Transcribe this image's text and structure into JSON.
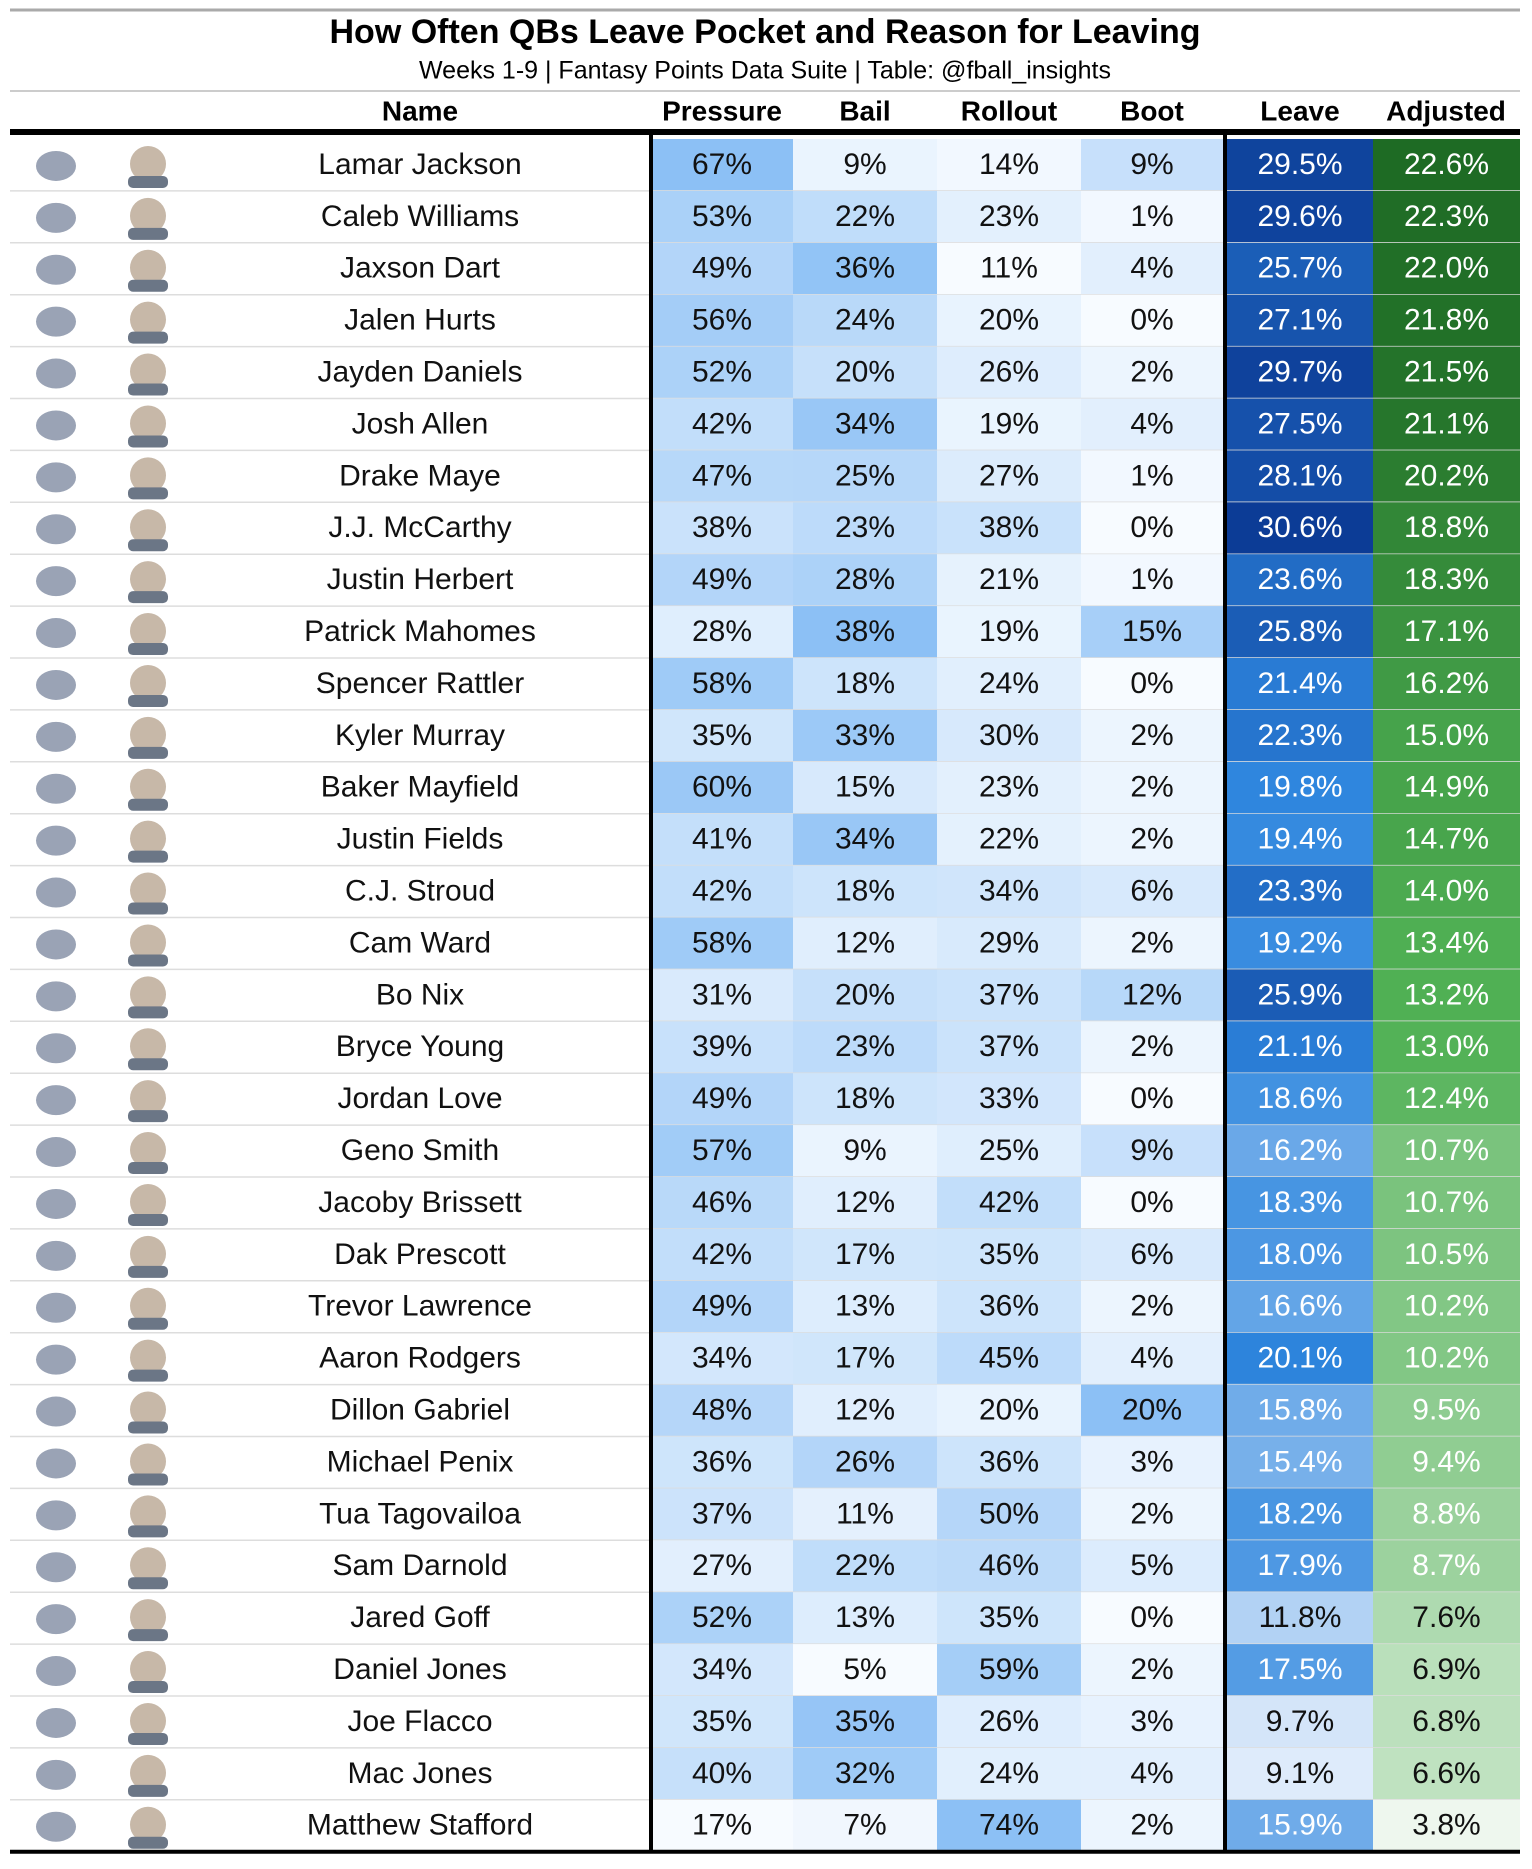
{
  "header": {
    "title": "How Often QBs Leave Pocket and Reason for Leaving",
    "subtitle": "Weeks 1-9 | Fantasy Points Data Suite | Table: @fball_insights"
  },
  "table": {
    "columns": [
      "Name",
      "Pressure",
      "Bail",
      "Rollout",
      "Boot",
      "Leave",
      "Adjusted"
    ],
    "rows": [
      [
        "Lamar Jackson",
        "67%",
        "9%",
        "14%",
        "9%",
        "29.5%",
        "22.6%"
      ],
      [
        "Caleb Williams",
        "53%",
        "22%",
        "23%",
        "1%",
        "29.6%",
        "22.3%"
      ],
      [
        "Jaxson Dart",
        "49%",
        "36%",
        "11%",
        "4%",
        "25.7%",
        "22.0%"
      ],
      [
        "Jalen Hurts",
        "56%",
        "24%",
        "20%",
        "0%",
        "27.1%",
        "21.8%"
      ],
      [
        "Jayden Daniels",
        "52%",
        "20%",
        "26%",
        "2%",
        "29.7%",
        "21.5%"
      ],
      [
        "Josh Allen",
        "42%",
        "34%",
        "19%",
        "4%",
        "27.5%",
        "21.1%"
      ],
      [
        "Drake Maye",
        "47%",
        "25%",
        "27%",
        "1%",
        "28.1%",
        "20.2%"
      ],
      [
        "J.J. McCarthy",
        "38%",
        "23%",
        "38%",
        "0%",
        "30.6%",
        "18.8%"
      ],
      [
        "Justin Herbert",
        "49%",
        "28%",
        "21%",
        "1%",
        "23.6%",
        "18.3%"
      ],
      [
        "Patrick Mahomes",
        "28%",
        "38%",
        "19%",
        "15%",
        "25.8%",
        "17.1%"
      ],
      [
        "Spencer Rattler",
        "58%",
        "18%",
        "24%",
        "0%",
        "21.4%",
        "16.2%"
      ],
      [
        "Kyler Murray",
        "35%",
        "33%",
        "30%",
        "2%",
        "22.3%",
        "15.0%"
      ],
      [
        "Baker Mayfield",
        "60%",
        "15%",
        "23%",
        "2%",
        "19.8%",
        "14.9%"
      ],
      [
        "Justin Fields",
        "41%",
        "34%",
        "22%",
        "2%",
        "19.4%",
        "14.7%"
      ],
      [
        "C.J. Stroud",
        "42%",
        "18%",
        "34%",
        "6%",
        "23.3%",
        "14.0%"
      ],
      [
        "Cam Ward",
        "58%",
        "12%",
        "29%",
        "2%",
        "19.2%",
        "13.4%"
      ],
      [
        "Bo Nix",
        "31%",
        "20%",
        "37%",
        "12%",
        "25.9%",
        "13.2%"
      ],
      [
        "Bryce Young",
        "39%",
        "23%",
        "37%",
        "2%",
        "21.1%",
        "13.0%"
      ],
      [
        "Jordan Love",
        "49%",
        "18%",
        "33%",
        "0%",
        "18.6%",
        "12.4%"
      ],
      [
        "Geno Smith",
        "57%",
        "9%",
        "25%",
        "9%",
        "16.2%",
        "10.7%"
      ],
      [
        "Jacoby Brissett",
        "46%",
        "12%",
        "42%",
        "0%",
        "18.3%",
        "10.7%"
      ],
      [
        "Dak Prescott",
        "42%",
        "17%",
        "35%",
        "6%",
        "18.0%",
        "10.5%"
      ],
      [
        "Trevor Lawrence",
        "49%",
        "13%",
        "36%",
        "2%",
        "16.6%",
        "10.2%"
      ],
      [
        "Aaron Rodgers",
        "34%",
        "17%",
        "45%",
        "4%",
        "20.1%",
        "10.2%"
      ],
      [
        "Dillon Gabriel",
        "48%",
        "12%",
        "20%",
        "20%",
        "15.8%",
        "9.5%"
      ],
      [
        "Michael Penix",
        "36%",
        "26%",
        "36%",
        "3%",
        "15.4%",
        "9.4%"
      ],
      [
        "Tua Tagovailoa",
        "37%",
        "11%",
        "50%",
        "2%",
        "18.2%",
        "8.8%"
      ],
      [
        "Sam Darnold",
        "27%",
        "22%",
        "46%",
        "5%",
        "17.9%",
        "8.7%"
      ],
      [
        "Jared Goff",
        "52%",
        "13%",
        "35%",
        "0%",
        "11.8%",
        "7.6%"
      ],
      [
        "Daniel Jones",
        "34%",
        "5%",
        "59%",
        "2%",
        "17.5%",
        "6.9%"
      ],
      [
        "Joe Flacco",
        "35%",
        "35%",
        "26%",
        "3%",
        "9.7%",
        "6.8%"
      ],
      [
        "Mac Jones",
        "40%",
        "32%",
        "24%",
        "4%",
        "9.1%",
        "6.6%"
      ],
      [
        "Matthew Stafford",
        "17%",
        "7%",
        "74%",
        "2%",
        "15.9%",
        "3.8%"
      ]
    ]
  }
}
